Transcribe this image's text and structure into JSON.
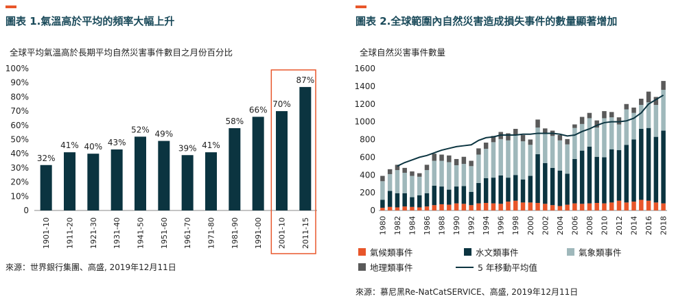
{
  "left": {
    "title": "圖表 1.氣溫高於平均的頻率大幅上升",
    "subtitle": "全球平均氣溫高於長期平均自然災害事件數目之月份百分比",
    "source": "來源：世界銀行集團、高盛, 2019年12月11日",
    "colors": {
      "bar": "#0b3440",
      "highlight": "#e8562a"
    }
  },
  "right": {
    "title": "圖表 2.全球範圍內自然災害造成損失事件的數量顯著增加",
    "subtitle": "全球自然災害事件數量",
    "source": "來源：慕尼黑Re-NatCatSERVICE、高盛, 2019年12月11日",
    "legend": {
      "climatological": "氣候類事件",
      "hydrological": "水文類事件",
      "meteorological": "氣象類事件",
      "geophysical": "地理類事件",
      "moving_avg": "5 年移動平均值"
    },
    "colors": {
      "climatological": "#e8562a",
      "hydrological": "#0b3440",
      "meteorological": "#9fb8bb",
      "geophysical": "#5a5a5a",
      "line": "#0b3440"
    }
  },
  "chart_data": [
    {
      "type": "bar",
      "categories": [
        "1901-10",
        "1911-20",
        "1921-30",
        "1931-40",
        "1941-50",
        "1951-60",
        "1961-70",
        "1971-80",
        "1981-90",
        "1991-00",
        "2001-10",
        "2011-15"
      ],
      "values": [
        32,
        41,
        40,
        43,
        52,
        49,
        39,
        41,
        58,
        66,
        70,
        87
      ],
      "data_labels": [
        "32%",
        "41%",
        "40%",
        "43%",
        "52%",
        "49%",
        "39%",
        "41%",
        "58%",
        "66%",
        "70%",
        "87%"
      ],
      "ylim": [
        0,
        100
      ],
      "yticks": [
        "0",
        "10%",
        "20%",
        "30%",
        "40%",
        "50%",
        "60%",
        "70%",
        "80%",
        "90%",
        "100%"
      ],
      "highlighted_categories": [
        "2001-10",
        "2011-15"
      ],
      "grid": false
    },
    {
      "type": "bar",
      "stacked": true,
      "x": [
        1980,
        1981,
        1982,
        1983,
        1984,
        1985,
        1986,
        1987,
        1988,
        1989,
        1990,
        1991,
        1992,
        1993,
        1994,
        1995,
        1996,
        1997,
        1998,
        1999,
        2000,
        2001,
        2002,
        2003,
        2004,
        2005,
        2006,
        2007,
        2008,
        2009,
        2010,
        2011,
        2012,
        2013,
        2014,
        2015,
        2016,
        2017,
        2018
      ],
      "xticks": [
        "1980",
        "1982",
        "1984",
        "1986",
        "1988",
        "1990",
        "1992",
        "1994",
        "1996",
        "1998",
        "2000",
        "2002",
        "2004",
        "2006",
        "2008",
        "2010",
        "2012",
        "2014",
        "2016",
        "2018"
      ],
      "ylim": [
        0,
        1600
      ],
      "yticks": [
        "0",
        "200",
        "400",
        "600",
        "800",
        "1000",
        "1200",
        "1400",
        "1600"
      ],
      "series": [
        {
          "name": "氣候類事件",
          "values": [
            30,
            40,
            35,
            45,
            40,
            35,
            45,
            60,
            70,
            65,
            80,
            75,
            60,
            80,
            85,
            80,
            75,
            100,
            110,
            90,
            90,
            85,
            75,
            60,
            50,
            65,
            80,
            75,
            80,
            85,
            80,
            90,
            110,
            90,
            100,
            120,
            110,
            90,
            80
          ]
        },
        {
          "name": "水文類事件",
          "values": [
            90,
            180,
            160,
            150,
            110,
            135,
            150,
            220,
            200,
            170,
            190,
            200,
            150,
            230,
            280,
            290,
            320,
            270,
            290,
            260,
            300,
            550,
            460,
            420,
            400,
            350,
            500,
            600,
            640,
            520,
            520,
            600,
            570,
            650,
            700,
            800,
            820,
            740,
            820
          ]
        },
        {
          "name": "氣象類事件",
          "values": [
            210,
            190,
            260,
            230,
            240,
            210,
            260,
            280,
            290,
            310,
            240,
            250,
            290,
            320,
            330,
            400,
            410,
            420,
            450,
            430,
            350,
            300,
            330,
            360,
            340,
            330,
            350,
            300,
            320,
            330,
            440,
            360,
            290,
            400,
            300,
            270,
            290,
            360,
            460
          ]
        },
        {
          "name": "地理類事件",
          "values": [
            60,
            55,
            60,
            55,
            50,
            40,
            60,
            80,
            70,
            75,
            70,
            80,
            60,
            70,
            70,
            70,
            80,
            80,
            70,
            70,
            60,
            90,
            60,
            60,
            60,
            60,
            40,
            80,
            60,
            80,
            80,
            60,
            80,
            60,
            60,
            70,
            120,
            90,
            100
          ]
        }
      ],
      "line": {
        "name": "5 年移動平均值",
        "values": [
          null,
          null,
          500,
          540,
          570,
          600,
          620,
          650,
          680,
          700,
          720,
          730,
          740,
          790,
          820,
          830,
          850,
          850,
          850,
          860,
          860,
          870,
          870,
          870,
          860,
          840,
          850,
          890,
          920,
          960,
          990,
          1000,
          1000,
          1010,
          1040,
          1100,
          1200,
          1250,
          1300
        ]
      }
    }
  ]
}
